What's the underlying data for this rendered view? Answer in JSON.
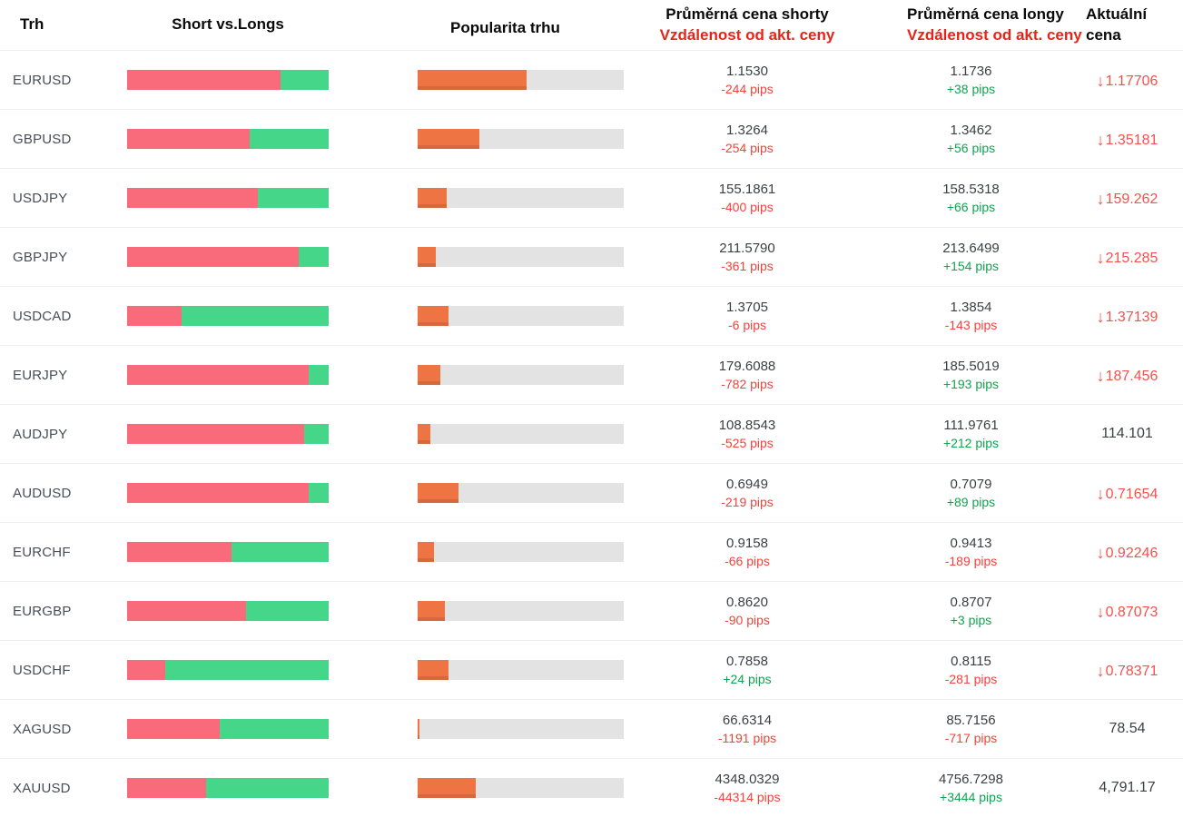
{
  "header": {
    "col_market": "Trh",
    "col_shorts_longs": "Short vs.Longs",
    "col_popularity": "Popularita trhu",
    "col_avg_short_line1": "Průměrná cena shorty",
    "col_avg_short_line2": "Vzdálenost od akt. ceny",
    "col_avg_long_line1": "Průměrná cena longy",
    "col_avg_long_line2": "Vzdálenost od akt. ceny",
    "col_current_line1": "Aktuální",
    "col_current_line2": "cena"
  },
  "colors": {
    "short_bar_red": "#f96b7b",
    "long_bar_green": "#45d689",
    "popularity_orange": "#ee7444",
    "track_gray": "#e3e3e3",
    "pips_red": "#f4423a",
    "pips_green": "#10a44f",
    "header_sub_red": "#e72419",
    "current_price_red": "#f5514d"
  },
  "icons": {
    "down_arrow": "↓"
  },
  "rows": [
    {
      "pair": "EURUSD",
      "short_pct": 76,
      "popularity_pct": 53,
      "avg_short_price": "1.1530",
      "avg_short_pips": "-244 pips",
      "avg_long_price": "1.1736",
      "avg_long_pips": "+38 pips",
      "current_price": "1.17706",
      "current_direction": "down"
    },
    {
      "pair": "GBPUSD",
      "short_pct": 61,
      "popularity_pct": 30,
      "avg_short_price": "1.3264",
      "avg_short_pips": "-254 pips",
      "avg_long_price": "1.3462",
      "avg_long_pips": "+56 pips",
      "current_price": "1.35181",
      "current_direction": "down"
    },
    {
      "pair": "USDJPY",
      "short_pct": 65,
      "popularity_pct": 14,
      "avg_short_price": "155.1861",
      "avg_short_pips": "-400 pips",
      "avg_long_price": "158.5318",
      "avg_long_pips": "+66 pips",
      "current_price": "159.262",
      "current_direction": "down"
    },
    {
      "pair": "GBPJPY",
      "short_pct": 85,
      "popularity_pct": 9,
      "avg_short_price": "211.5790",
      "avg_short_pips": "-361 pips",
      "avg_long_price": "213.6499",
      "avg_long_pips": "+154 pips",
      "current_price": "215.285",
      "current_direction": "down"
    },
    {
      "pair": "USDCAD",
      "short_pct": 27,
      "popularity_pct": 15,
      "avg_short_price": "1.3705",
      "avg_short_pips": "-6 pips",
      "avg_long_price": "1.3854",
      "avg_long_pips": "-143 pips",
      "current_price": "1.37139",
      "current_direction": "down"
    },
    {
      "pair": "EURJPY",
      "short_pct": 90,
      "popularity_pct": 11,
      "avg_short_price": "179.6088",
      "avg_short_pips": "-782 pips",
      "avg_long_price": "185.5019",
      "avg_long_pips": "+193 pips",
      "current_price": "187.456",
      "current_direction": "down"
    },
    {
      "pair": "AUDJPY",
      "short_pct": 88,
      "popularity_pct": 6,
      "avg_short_price": "108.8543",
      "avg_short_pips": "-525 pips",
      "avg_long_price": "111.9761",
      "avg_long_pips": "+212 pips",
      "current_price": "114.101",
      "current_direction": "none"
    },
    {
      "pair": "AUDUSD",
      "short_pct": 90,
      "popularity_pct": 20,
      "avg_short_price": "0.6949",
      "avg_short_pips": "-219 pips",
      "avg_long_price": "0.7079",
      "avg_long_pips": "+89 pips",
      "current_price": "0.71654",
      "current_direction": "down"
    },
    {
      "pair": "EURCHF",
      "short_pct": 52,
      "popularity_pct": 8,
      "avg_short_price": "0.9158",
      "avg_short_pips": "-66 pips",
      "avg_long_price": "0.9413",
      "avg_long_pips": "-189 pips",
      "current_price": "0.92246",
      "current_direction": "down"
    },
    {
      "pair": "EURGBP",
      "short_pct": 59,
      "popularity_pct": 13,
      "avg_short_price": "0.8620",
      "avg_short_pips": "-90 pips",
      "avg_long_price": "0.8707",
      "avg_long_pips": "+3 pips",
      "current_price": "0.87073",
      "current_direction": "down"
    },
    {
      "pair": "USDCHF",
      "short_pct": 19,
      "popularity_pct": 15,
      "avg_short_price": "0.7858",
      "avg_short_pips": "+24 pips",
      "avg_long_price": "0.8115",
      "avg_long_pips": "-281 pips",
      "current_price": "0.78371",
      "current_direction": "down"
    },
    {
      "pair": "XAGUSD",
      "short_pct": 46,
      "popularity_pct": 1,
      "avg_short_price": "66.6314",
      "avg_short_pips": "-1191 pips",
      "avg_long_price": "85.7156",
      "avg_long_pips": "-717 pips",
      "current_price": "78.54",
      "current_direction": "none"
    },
    {
      "pair": "XAUUSD",
      "short_pct": 39,
      "popularity_pct": 28,
      "avg_short_price": "4348.0329",
      "avg_short_pips": "-44314 pips",
      "avg_long_price": "4756.7298",
      "avg_long_pips": "+3444 pips",
      "current_price": "4,791.17",
      "current_direction": "none"
    }
  ]
}
